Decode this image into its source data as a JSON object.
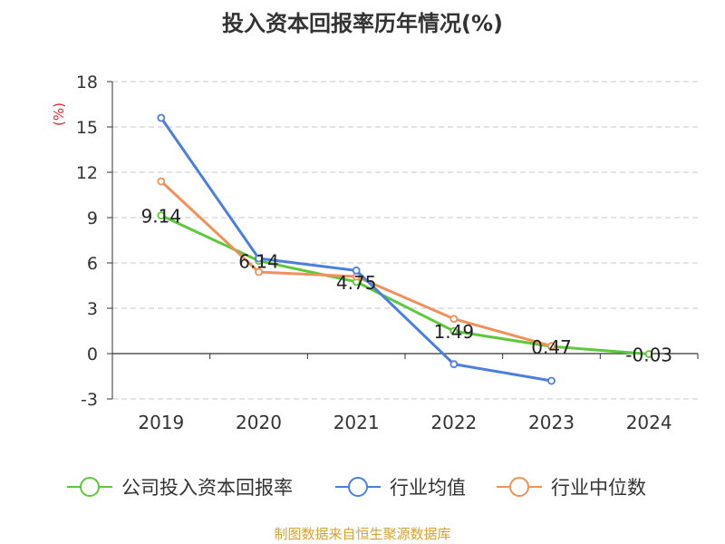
{
  "title": "投入资本回报率历年情况(%)",
  "source": "制图数据来自恒生聚源数据库",
  "colors": {
    "company": "#5cc93a",
    "industry_avg": "#4a7fdf",
    "industry_median": "#f2905a",
    "grid": "#c8c8c8",
    "axis": "#333333",
    "unit": "#e0262b"
  },
  "chart_data": {
    "type": "line",
    "title": "投入资本回报率历年情况(%)",
    "unit_label": "(%)",
    "categories": [
      "2019",
      "2020",
      "2021",
      "2022",
      "2023",
      "2024"
    ],
    "y_ticks": [
      18,
      15,
      12,
      9,
      6,
      3,
      0,
      -3
    ],
    "ylim": [
      -3,
      18
    ],
    "grid": true,
    "legend_position": "bottom",
    "series": [
      {
        "name": "公司投入资本回报率",
        "color_key": "company",
        "values": [
          9.14,
          6.14,
          4.75,
          1.49,
          0.47,
          -0.03
        ],
        "labels": [
          "9.14",
          "6.14",
          "4.75",
          "1.49",
          "0.47",
          "-0.03"
        ]
      },
      {
        "name": "行业均值",
        "color_key": "industry_avg",
        "values": [
          15.6,
          6.3,
          5.5,
          -0.7,
          -1.8,
          null
        ]
      },
      {
        "name": "行业中位数",
        "color_key": "industry_median",
        "values": [
          11.4,
          5.4,
          5.1,
          2.3,
          0.5,
          null
        ]
      }
    ]
  }
}
